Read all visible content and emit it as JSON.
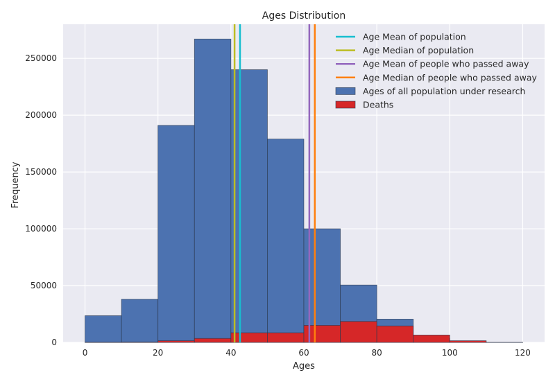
{
  "chart_data": {
    "type": "bar",
    "title": "Ages Distribution",
    "xlabel": "Ages",
    "ylabel": "Frequency",
    "xlim": [
      -6,
      126
    ],
    "ylim": [
      0,
      280000
    ],
    "xticks": [
      0,
      20,
      40,
      60,
      80,
      100,
      120
    ],
    "yticks": [
      0,
      50000,
      100000,
      150000,
      200000,
      250000
    ],
    "grid": true,
    "legend_position": "top-right",
    "bin_edges": [
      0,
      10,
      20,
      30,
      40,
      50,
      60,
      70,
      80,
      90,
      100,
      110,
      120
    ],
    "series": [
      {
        "name": "Ages of all population under research",
        "kind": "histogram",
        "color": "#4c72b0",
        "values": [
          23500,
          38000,
          191000,
          267000,
          240000,
          179000,
          100000,
          50500,
          20500,
          3500,
          600,
          100
        ]
      },
      {
        "name": "Deaths",
        "kind": "histogram",
        "color": "#d62728",
        "values": [
          300,
          400,
          1500,
          3500,
          8500,
          8500,
          15000,
          18500,
          14500,
          6500,
          1500,
          100
        ]
      }
    ],
    "reference_lines": [
      {
        "name": "Age Mean of population",
        "x": 42.5,
        "color": "#17becf"
      },
      {
        "name": "Age Median of population",
        "x": 41,
        "color": "#bcbd22"
      },
      {
        "name": "Age Mean of people who passed away",
        "x": 61.5,
        "color": "#9467bd"
      },
      {
        "name": "Age Median of people who passed away",
        "x": 63,
        "color": "#ff7f0e"
      }
    ],
    "legend": [
      {
        "label": "Age Mean of population",
        "marker": "line",
        "color": "#17becf"
      },
      {
        "label": "Age Median of population",
        "marker": "line",
        "color": "#bcbd22"
      },
      {
        "label": "Age Mean of people who passed away",
        "marker": "line",
        "color": "#9467bd"
      },
      {
        "label": "Age Median of people who passed away",
        "marker": "line",
        "color": "#ff7f0e"
      },
      {
        "label": "Ages of all population under research",
        "marker": "patch",
        "color": "#4c72b0"
      },
      {
        "label": "Deaths",
        "marker": "patch",
        "color": "#d62728"
      }
    ]
  }
}
